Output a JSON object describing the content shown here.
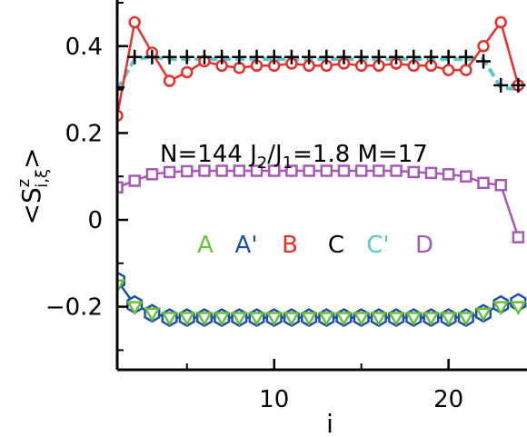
{
  "chart_data": {
    "type": "line",
    "title": "",
    "xlabel": "i",
    "ylabel": "<S^z_{i,ξ}>",
    "ylabel_parts": {
      "main": "<S",
      "sup": "z",
      "sub": "i,ξ",
      "close": ">"
    },
    "xlim": [
      1,
      24
    ],
    "ylim": [
      -0.35,
      0.5
    ],
    "x_ticks": [
      10,
      20
    ],
    "x_tick_labels": [
      "10",
      "20"
    ],
    "y_ticks": [
      -0.2,
      0,
      0.2,
      0.4
    ],
    "y_tick_labels": [
      "−0.2",
      "0",
      "0.2",
      "0.4"
    ],
    "grid": false,
    "legend_placement": "center",
    "annotation": {
      "parts": [
        {
          "t": "N=144  J"
        },
        {
          "t": "2",
          "sub": true
        },
        {
          "t": "/J"
        },
        {
          "t": "1",
          "sub": true
        },
        {
          "t": "=1.8  M=17"
        }
      ]
    },
    "legend": [
      {
        "label": "A",
        "color": "#6abf3a"
      },
      {
        "label": "A'",
        "color": "#1f4fa8"
      },
      {
        "label": "B",
        "color": "#e8302a"
      },
      {
        "label": "C",
        "color": "#000000"
      },
      {
        "label": "C'",
        "color": "#5ac8cf"
      },
      {
        "label": "D",
        "color": "#a659b5"
      }
    ],
    "series": [
      {
        "name": "A",
        "color": "#6abf3a",
        "marker": "triangle-down",
        "line": false,
        "x": [
          1,
          2,
          3,
          4,
          5,
          6,
          7,
          8,
          9,
          10,
          11,
          12,
          13,
          14,
          15,
          16,
          17,
          18,
          19,
          20,
          21,
          22,
          23,
          24
        ],
        "y": [
          -0.15,
          -0.2,
          -0.215,
          -0.225,
          -0.225,
          -0.225,
          -0.225,
          -0.225,
          -0.225,
          -0.225,
          -0.225,
          -0.225,
          -0.225,
          -0.225,
          -0.225,
          -0.225,
          -0.225,
          -0.225,
          -0.225,
          -0.225,
          -0.225,
          -0.215,
          -0.2,
          -0.2
        ]
      },
      {
        "name": "A'",
        "color": "#1f4fa8",
        "marker": "hexagon",
        "line": true,
        "x": [
          1,
          2,
          3,
          4,
          5,
          6,
          7,
          8,
          9,
          10,
          11,
          12,
          13,
          14,
          15,
          16,
          17,
          18,
          19,
          20,
          21,
          22,
          23,
          24
        ],
        "y": [
          -0.14,
          -0.195,
          -0.215,
          -0.225,
          -0.225,
          -0.225,
          -0.225,
          -0.225,
          -0.225,
          -0.225,
          -0.225,
          -0.225,
          -0.225,
          -0.225,
          -0.225,
          -0.225,
          -0.225,
          -0.225,
          -0.225,
          -0.225,
          -0.225,
          -0.215,
          -0.195,
          -0.19
        ]
      },
      {
        "name": "B",
        "color": "#e8302a",
        "marker": "circle",
        "line": true,
        "x": [
          1,
          2,
          3,
          4,
          5,
          6,
          7,
          8,
          9,
          10,
          11,
          12,
          13,
          14,
          15,
          16,
          17,
          18,
          19,
          20,
          21,
          22,
          23,
          24
        ],
        "y": [
          0.24,
          0.455,
          0.385,
          0.32,
          0.34,
          0.365,
          0.355,
          0.35,
          0.355,
          0.355,
          0.36,
          0.355,
          0.355,
          0.36,
          0.355,
          0.355,
          0.36,
          0.355,
          0.355,
          0.345,
          0.345,
          0.4,
          0.455,
          0.31
        ]
      },
      {
        "name": "C",
        "color": "#000000",
        "marker": "plus",
        "line": false,
        "x": [
          1,
          2,
          3,
          4,
          5,
          6,
          7,
          8,
          9,
          10,
          11,
          12,
          13,
          14,
          15,
          16,
          17,
          18,
          19,
          20,
          21,
          22,
          23,
          24
        ],
        "y": [
          0.305,
          0.375,
          0.375,
          0.375,
          0.375,
          0.375,
          0.375,
          0.375,
          0.375,
          0.375,
          0.375,
          0.375,
          0.375,
          0.375,
          0.375,
          0.375,
          0.375,
          0.375,
          0.375,
          0.375,
          0.375,
          0.365,
          0.31,
          0.31
        ]
      },
      {
        "name": "C'",
        "color": "#5ac8cf",
        "marker": "none",
        "line": true,
        "x": [
          1,
          2,
          3,
          4,
          5,
          6,
          7,
          8,
          9,
          10,
          11,
          12,
          13,
          14,
          15,
          16,
          17,
          18,
          19,
          20,
          21,
          22,
          23,
          24
        ],
        "y": [
          0.3,
          0.37,
          0.375,
          0.37,
          0.37,
          0.37,
          0.37,
          0.37,
          0.37,
          0.37,
          0.37,
          0.37,
          0.37,
          0.37,
          0.37,
          0.37,
          0.37,
          0.37,
          0.37,
          0.37,
          0.37,
          0.37,
          0.305,
          0.3
        ]
      },
      {
        "name": "D",
        "color": "#a659b5",
        "marker": "square",
        "line": true,
        "x": [
          1,
          2,
          3,
          4,
          5,
          6,
          7,
          8,
          9,
          10,
          11,
          12,
          13,
          14,
          15,
          16,
          17,
          18,
          19,
          20,
          21,
          22,
          23,
          24
        ],
        "y": [
          0.075,
          0.09,
          0.105,
          0.11,
          0.112,
          0.113,
          0.113,
          0.113,
          0.113,
          0.113,
          0.113,
          0.113,
          0.113,
          0.113,
          0.113,
          0.113,
          0.113,
          0.11,
          0.108,
          0.105,
          0.1,
          0.085,
          0.08,
          -0.04
        ]
      }
    ]
  }
}
